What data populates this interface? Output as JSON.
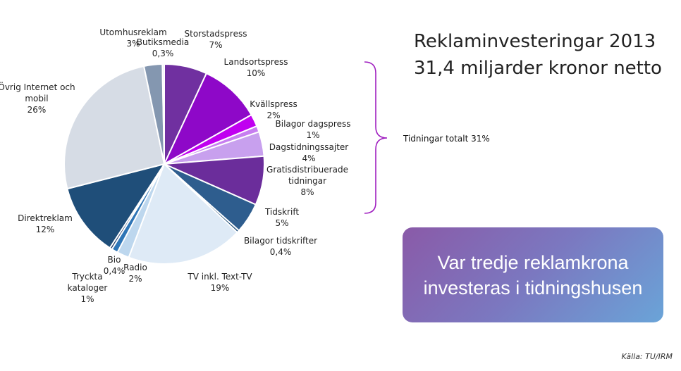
{
  "title": {
    "line1": "Reklaminvesteringar 2013",
    "line2": "31,4 miljarder kronor netto"
  },
  "bracket_label": "Tidningar totalt 31%",
  "callout": {
    "line1": "Var tredje reklamkrona",
    "line2": "investeras i tidningshusen"
  },
  "source": "Källa: TU/IRM",
  "chart_data": {
    "type": "pie",
    "slices": [
      {
        "lines": [
          "Storstadspress",
          "7%"
        ],
        "value": 7,
        "color": "#7030a0"
      },
      {
        "lines": [
          "Landsortspress",
          "10%"
        ],
        "value": 10,
        "color": "#8e08c8"
      },
      {
        "lines": [
          "Kvällspress",
          "2%"
        ],
        "value": 2,
        "color": "#c000f0"
      },
      {
        "lines": [
          "Bilagor dagspress",
          "1%"
        ],
        "value": 1,
        "color": "#c77ef0"
      },
      {
        "lines": [
          "Dagstidningssajter",
          "4%"
        ],
        "value": 4,
        "color": "#c8a0ee"
      },
      {
        "lines": [
          "Gratisdistribuerade",
          "tidningar",
          "8%"
        ],
        "value": 8,
        "color": "#6b2d9b"
      },
      {
        "lines": [
          "Tidskrift",
          "5%"
        ],
        "value": 5,
        "color": "#2e5d8e"
      },
      {
        "lines": [
          "Bilagor tidskrifter",
          "0,4%"
        ],
        "value": 0.4,
        "color": "#1f4e79"
      },
      {
        "lines": [
          "TV inkl. Text-TV",
          "19%"
        ],
        "value": 19,
        "color": "#deeaf6"
      },
      {
        "lines": [
          "Radio",
          "2%"
        ],
        "value": 2,
        "color": "#bdd7ee"
      },
      {
        "lines": [
          "Tryckta",
          "kataloger",
          "1%"
        ],
        "value": 1,
        "color": "#2e75b6"
      },
      {
        "lines": [
          "Bio",
          "0,4%"
        ],
        "value": 0.4,
        "color": "#1f3864"
      },
      {
        "lines": [
          "Direktreklam",
          "12%"
        ],
        "value": 12,
        "color": "#1f4e79"
      },
      {
        "lines": [
          "Övrig Internet och",
          "mobil",
          "26%"
        ],
        "value": 26,
        "color": "#d6dce5"
      },
      {
        "lines": [
          "Utomhusreklam",
          "3%"
        ],
        "value": 3,
        "color": "#8497b0"
      },
      {
        "lines": [
          "Butiksmedia",
          "0,3%"
        ],
        "value": 0.3,
        "color": "#d9e1f2"
      }
    ],
    "bracket_color": "#a020c0"
  }
}
